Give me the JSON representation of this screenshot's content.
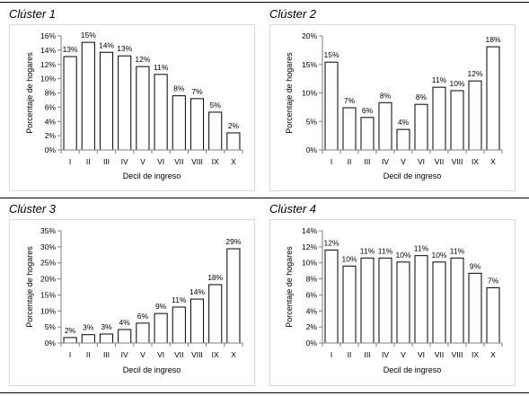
{
  "chart_data": [
    {
      "type": "bar",
      "title": "Clúster 1",
      "categories": [
        "I",
        "II",
        "III",
        "IV",
        "V",
        "VI",
        "VII",
        "VIII",
        "IX",
        "X"
      ],
      "values": [
        13.1,
        15.1,
        13.7,
        13.2,
        11.7,
        10.6,
        7.6,
        7.2,
        5.3,
        2.4
      ],
      "data_labels": [
        "13%",
        "15%",
        "14%",
        "13%",
        "12%",
        "11%",
        "8%",
        "7%",
        "5%",
        "2%"
      ],
      "xlabel": "Decil de ingreso",
      "ylabel": "Porcentaje de hogares",
      "ylim": [
        0,
        16
      ],
      "yticks": [
        0,
        2,
        4,
        6,
        8,
        10,
        12,
        14,
        16
      ],
      "ytick_labels": [
        "0%",
        "2%",
        "4%",
        "6%",
        "8%",
        "10%",
        "12%",
        "14%",
        "16%"
      ],
      "grid": false,
      "bar_fill": "#ffffff",
      "bar_outline": "#000000"
    },
    {
      "type": "bar",
      "title": "Clúster 2",
      "categories": [
        "I",
        "II",
        "III",
        "IV",
        "V",
        "VI",
        "VII",
        "VIII",
        "IX",
        "X"
      ],
      "values": [
        15.4,
        7.4,
        5.7,
        8.3,
        3.6,
        8.0,
        11.0,
        10.4,
        12.1,
        18.1
      ],
      "data_labels": [
        "15%",
        "7%",
        "6%",
        "8%",
        "4%",
        "8%",
        "11%",
        "10%",
        "12%",
        "18%"
      ],
      "xlabel": "Decil de ingreso",
      "ylabel": "Porcentaje de hogares",
      "ylim": [
        0,
        20
      ],
      "yticks": [
        0,
        5,
        10,
        15,
        20
      ],
      "ytick_labels": [
        "0%",
        "5%",
        "10%",
        "15%",
        "20%"
      ],
      "grid": false,
      "bar_fill": "#ffffff",
      "bar_outline": "#000000"
    },
    {
      "type": "bar",
      "title": "Clúster 3",
      "categories": [
        "I",
        "II",
        "III",
        "IV",
        "V",
        "VI",
        "VII",
        "VIII",
        "IX",
        "X"
      ],
      "values": [
        1.7,
        2.6,
        2.8,
        4.2,
        6.2,
        9.2,
        11.2,
        13.7,
        18.2,
        29.4
      ],
      "data_labels": [
        "2%",
        "3%",
        "3%",
        "4%",
        "6%",
        "9%",
        "11%",
        "14%",
        "18%",
        "29%"
      ],
      "xlabel": "Decil de ingreso",
      "ylabel": "Porcentaje de hogares",
      "ylim": [
        0,
        35
      ],
      "yticks": [
        0,
        5,
        10,
        15,
        20,
        25,
        30,
        35
      ],
      "ytick_labels": [
        "0%",
        "5%",
        "10%",
        "15%",
        "20%",
        "25%",
        "30%",
        "35%"
      ],
      "grid": false,
      "bar_fill": "#ffffff",
      "bar_outline": "#000000"
    },
    {
      "type": "bar",
      "title": "Clúster 4",
      "categories": [
        "I",
        "II",
        "III",
        "IV",
        "V",
        "VI",
        "VII",
        "VIII",
        "IX",
        "X"
      ],
      "values": [
        11.6,
        9.6,
        10.6,
        10.6,
        10.1,
        10.9,
        10.1,
        10.6,
        8.7,
        6.9
      ],
      "data_labels": [
        "12%",
        "10%",
        "11%",
        "11%",
        "10%",
        "11%",
        "10%",
        "11%",
        "9%",
        "7%"
      ],
      "xlabel": "Decil de ingreso",
      "ylabel": "Porcentaje de hogares",
      "ylim": [
        0,
        14
      ],
      "yticks": [
        0,
        2,
        4,
        6,
        8,
        10,
        12,
        14
      ],
      "ytick_labels": [
        "0%",
        "2%",
        "4%",
        "6%",
        "8%",
        "10%",
        "12%",
        "14%"
      ],
      "grid": false,
      "bar_fill": "#ffffff",
      "bar_outline": "#000000"
    }
  ]
}
